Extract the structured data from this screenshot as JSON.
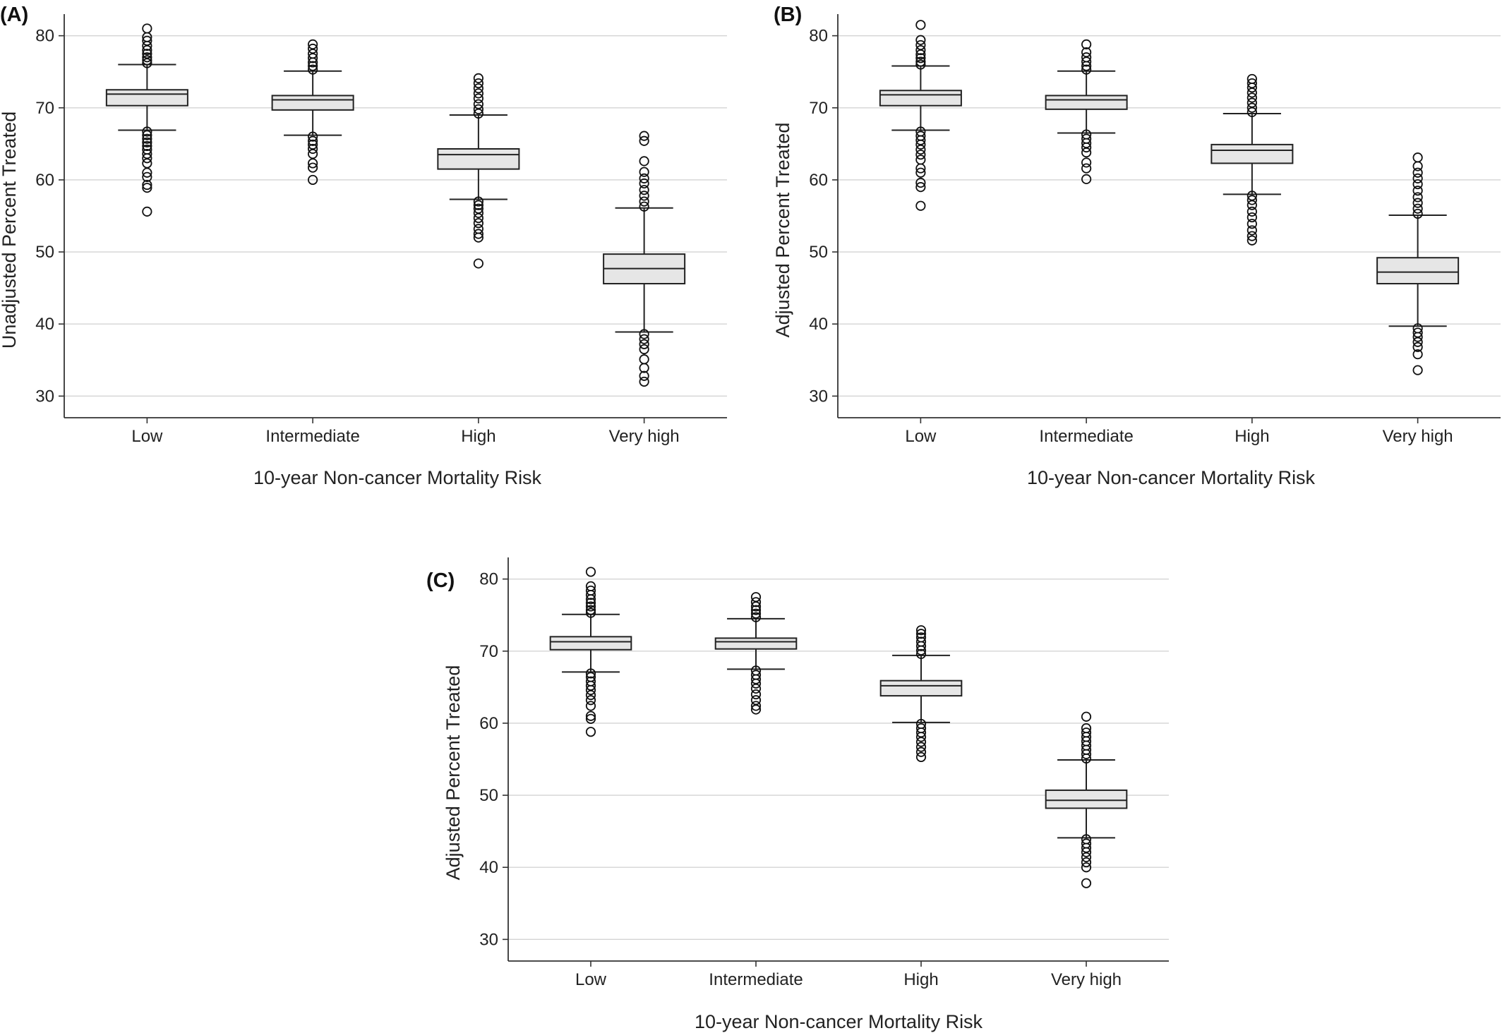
{
  "chart_data": [
    {
      "type": "box",
      "panel_label": "(A)",
      "xlabel": "10-year Non-cancer Mortality Risk",
      "ylabel": "Unadjusted Percent Treated",
      "ylim": [
        27,
        83
      ],
      "yticks": [
        30,
        40,
        50,
        60,
        70,
        80
      ],
      "grid": true,
      "box_fill": "#e6e6e6",
      "categories": [
        "Low",
        "Intermediate",
        "High",
        "Very high"
      ],
      "boxes": [
        {
          "category": "Low",
          "q1": 70.3,
          "median": 71.9,
          "q3": 72.5,
          "whisker_low": 66.9,
          "whisker_high": 76.0,
          "outliers_low": [
            66.7,
            66.2,
            65.7,
            65.2,
            64.7,
            64.2,
            63.6,
            63.0,
            62.3,
            61.0,
            60.4,
            59.3,
            58.9,
            55.6
          ],
          "outliers_high": [
            76.2,
            76.6,
            77.0,
            77.5,
            78.0,
            78.6,
            79.3,
            79.8,
            81.0
          ]
        },
        {
          "category": "Intermediate",
          "q1": 69.7,
          "median": 71.1,
          "q3": 71.7,
          "whisker_low": 66.2,
          "whisker_high": 75.1,
          "outliers_low": [
            66.0,
            65.4,
            64.9,
            64.3,
            63.6,
            62.3,
            61.7,
            60.0
          ],
          "outliers_high": [
            75.3,
            75.8,
            76.3,
            76.9,
            77.5,
            78.2,
            78.8
          ]
        },
        {
          "category": "High",
          "q1": 61.5,
          "median": 63.5,
          "q3": 64.3,
          "whisker_low": 57.3,
          "whisker_high": 69.0,
          "outliers_low": [
            57.0,
            56.5,
            56.0,
            55.4,
            54.7,
            54.0,
            53.2,
            52.5,
            52.0,
            48.4
          ],
          "outliers_high": [
            69.2,
            69.8,
            70.5,
            71.3,
            72.0,
            72.7,
            73.4,
            74.1
          ]
        },
        {
          "category": "Very high",
          "q1": 45.6,
          "median": 47.7,
          "q3": 49.7,
          "whisker_low": 38.9,
          "whisker_high": 56.1,
          "outliers_low": [
            38.6,
            37.9,
            37.2,
            36.5,
            35.1,
            33.9,
            32.8,
            32.0
          ],
          "outliers_high": [
            56.3,
            57.0,
            57.8,
            58.6,
            59.5,
            60.2,
            61.1,
            62.6,
            65.4,
            66.1
          ]
        }
      ]
    },
    {
      "type": "box",
      "panel_label": "(B)",
      "xlabel": "10-year Non-cancer Mortality Risk",
      "ylabel": "Adjusted Percent Treated",
      "ylim": [
        27,
        83
      ],
      "yticks": [
        30,
        40,
        50,
        60,
        70,
        80
      ],
      "grid": true,
      "box_fill": "#e6e6e6",
      "categories": [
        "Low",
        "Intermediate",
        "High",
        "Very high"
      ],
      "boxes": [
        {
          "category": "Low",
          "q1": 70.3,
          "median": 71.8,
          "q3": 72.4,
          "whisker_low": 66.9,
          "whisker_high": 75.8,
          "outliers_low": [
            66.7,
            66.1,
            65.5,
            64.9,
            64.2,
            63.5,
            62.8,
            61.6,
            61.0,
            59.6,
            59.0,
            56.4
          ],
          "outliers_high": [
            76.0,
            76.4,
            76.9,
            77.4,
            78.0,
            78.7,
            79.4,
            81.5
          ]
        },
        {
          "category": "Intermediate",
          "q1": 69.8,
          "median": 71.1,
          "q3": 71.7,
          "whisker_low": 66.5,
          "whisker_high": 75.1,
          "outliers_low": [
            66.3,
            65.7,
            65.1,
            64.5,
            63.8,
            62.4,
            61.6,
            60.1
          ],
          "outliers_high": [
            75.3,
            75.8,
            76.4,
            77.0,
            77.7,
            78.8
          ]
        },
        {
          "category": "High",
          "q1": 62.3,
          "median": 64.1,
          "q3": 64.9,
          "whisker_low": 58.0,
          "whisker_high": 69.2,
          "outliers_low": [
            57.8,
            57.2,
            56.5,
            55.6,
            54.8,
            53.9,
            53.0,
            52.2,
            51.6
          ],
          "outliers_high": [
            69.4,
            70.0,
            70.7,
            71.4,
            72.1,
            72.8,
            73.4,
            74.0
          ]
        },
        {
          "category": "Very high",
          "q1": 45.6,
          "median": 47.2,
          "q3": 49.2,
          "whisker_low": 39.7,
          "whisker_high": 55.1,
          "outliers_low": [
            39.4,
            38.8,
            38.2,
            37.5,
            36.8,
            35.8,
            33.6
          ],
          "outliers_high": [
            55.3,
            56.0,
            56.8,
            57.6,
            58.5,
            59.4,
            60.2,
            61.0,
            61.9,
            63.1
          ]
        }
      ]
    },
    {
      "type": "box",
      "panel_label": "(C)",
      "xlabel": "10-year Non-cancer Mortality Risk",
      "ylabel": "Adjusted Percent Treated",
      "ylim": [
        27,
        83
      ],
      "yticks": [
        30,
        40,
        50,
        60,
        70,
        80
      ],
      "grid": true,
      "box_fill": "#e6e6e6",
      "categories": [
        "Low",
        "Intermediate",
        "High",
        "Very high"
      ],
      "boxes": [
        {
          "category": "Low",
          "q1": 70.2,
          "median": 71.3,
          "q3": 72.0,
          "whisker_low": 67.1,
          "whisker_high": 75.1,
          "outliers_low": [
            66.9,
            66.4,
            65.8,
            65.2,
            64.6,
            63.9,
            63.2,
            62.4,
            61.0,
            60.6,
            58.8
          ],
          "outliers_high": [
            75.3,
            75.7,
            76.2,
            76.7,
            77.2,
            77.8,
            78.4,
            79.0,
            81.0
          ]
        },
        {
          "category": "Intermediate",
          "q1": 70.3,
          "median": 71.3,
          "q3": 71.8,
          "whisker_low": 67.5,
          "whisker_high": 74.5,
          "outliers_low": [
            67.3,
            66.7,
            66.1,
            65.5,
            64.8,
            64.0,
            63.2,
            62.4,
            61.9
          ],
          "outliers_high": [
            74.7,
            75.2,
            75.7,
            76.2,
            76.8,
            77.5
          ]
        },
        {
          "category": "High",
          "q1": 63.8,
          "median": 65.2,
          "q3": 65.9,
          "whisker_low": 60.1,
          "whisker_high": 69.4,
          "outliers_low": [
            59.9,
            59.3,
            58.7,
            58.1,
            57.4,
            56.7,
            56.0,
            55.3
          ],
          "outliers_high": [
            69.6,
            70.1,
            70.7,
            71.3,
            71.9,
            72.4,
            72.9
          ]
        },
        {
          "category": "Very high",
          "q1": 48.2,
          "median": 49.3,
          "q3": 50.7,
          "whisker_low": 44.1,
          "whisker_high": 54.9,
          "outliers_low": [
            43.9,
            43.3,
            42.7,
            42.1,
            41.4,
            40.7,
            40.0,
            37.8
          ],
          "outliers_high": [
            55.1,
            55.7,
            56.3,
            56.9,
            57.5,
            58.1,
            58.7,
            59.3,
            60.9
          ]
        }
      ]
    }
  ]
}
